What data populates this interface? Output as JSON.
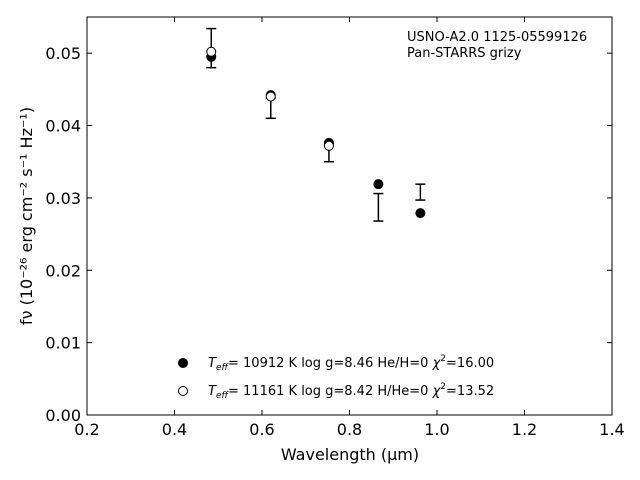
{
  "chart_data": {
    "type": "scatter",
    "xlabel": "Wavelength (μm)",
    "ylabel": "fν (10⁻²⁶ erg cm⁻² s⁻¹ Hz⁻¹)",
    "xlim": [
      0.2,
      1.4
    ],
    "ylim": [
      0.0,
      0.055
    ],
    "xticks": [
      0.2,
      0.4,
      0.6,
      0.8,
      1.0,
      1.2,
      1.4
    ],
    "xtick_labels": [
      "0.2",
      "0.4",
      "0.6",
      "0.8",
      "1.0",
      "1.2",
      "1.4"
    ],
    "yticks": [
      0.0,
      0.01,
      0.02,
      0.03,
      0.04,
      0.05
    ],
    "ytick_labels": [
      "0.00",
      "0.01",
      "0.02",
      "0.03",
      "0.04",
      "0.05"
    ],
    "annotations": [
      "USNO-A2.0 1125-05599126",
      "Pan-STARRS grizy"
    ],
    "legend_position": "lower-center",
    "observed": {
      "x": [
        0.484,
        0.62,
        0.753,
        0.866,
        0.962
      ],
      "y": [
        0.0507,
        0.0424,
        0.0362,
        0.0287,
        0.0308
      ],
      "err": [
        0.0027,
        0.0014,
        0.0012,
        0.0019,
        0.0011
      ]
    },
    "series": [
      {
        "marker": "filled-circle",
        "x": [
          0.484,
          0.62,
          0.753,
          0.866,
          0.962
        ],
        "y": [
          0.0495,
          0.0442,
          0.0376,
          0.0319,
          0.0279
        ],
        "legend_teff": "= 10912 K",
        "legend_params": "log g=8.46  He/H=0",
        "legend_chi": "=16.00"
      },
      {
        "marker": "open-circle",
        "x": [
          0.484,
          0.62,
          0.753
        ],
        "y": [
          0.0502,
          0.044,
          0.0372
        ],
        "legend_teff": "= 11161 K",
        "legend_params": "log g=8.42  H/He=0",
        "legend_chi": "=13.52"
      }
    ]
  }
}
